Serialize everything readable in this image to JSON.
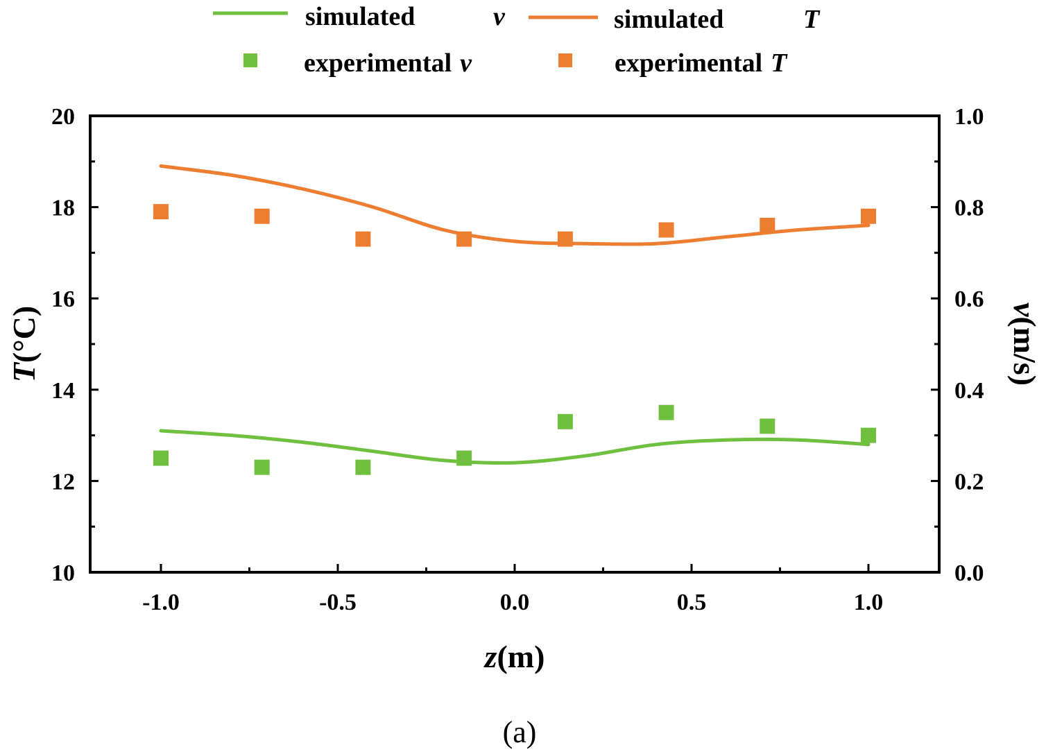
{
  "chart_data": {
    "type": "line",
    "x": [
      -1.0,
      -0.7143,
      -0.4286,
      -0.1429,
      0.1429,
      0.4286,
      0.7143,
      1.0
    ],
    "xlabel": {
      "var": "z",
      "unit": "(m)"
    },
    "ylabel_left": {
      "var": "T",
      "unit": "(°C)"
    },
    "ylabel_right": {
      "var": "v",
      "unit": "(m/s)"
    },
    "xlim": [
      -1.2,
      1.2
    ],
    "ylim_left": [
      10,
      20
    ],
    "ylim_right": [
      0.0,
      1.0
    ],
    "xticks": [
      "-1.0",
      "-0.5",
      "0.0",
      "0.5",
      "1.0"
    ],
    "xtick_values": [
      -1.0,
      -0.5,
      0.0,
      0.5,
      1.0
    ],
    "yticks_left": [
      "10",
      "12",
      "14",
      "16",
      "18",
      "20"
    ],
    "ytick_values_left": [
      10,
      12,
      14,
      16,
      18,
      20
    ],
    "yticks_right": [
      "0.0",
      "0.2",
      "0.4",
      "0.6",
      "0.8",
      "1.0"
    ],
    "ytick_values_right": [
      0.0,
      0.2,
      0.4,
      0.6,
      0.8,
      1.0
    ],
    "series": [
      {
        "name": "simulated T",
        "kind": "line",
        "axis": "left",
        "color": "#ed7d31",
        "x": [
          -1.0,
          -0.8,
          -0.6,
          -0.4,
          -0.2,
          0.0,
          0.2,
          0.4,
          0.6,
          0.8,
          1.0
        ],
        "values": [
          18.9,
          18.7,
          18.4,
          18.0,
          17.5,
          17.25,
          17.2,
          17.2,
          17.35,
          17.5,
          17.6
        ]
      },
      {
        "name": "experimental T",
        "kind": "marker",
        "axis": "left",
        "color": "#ed7d31",
        "x": [
          -1.0,
          -0.7143,
          -0.4286,
          -0.1429,
          0.1429,
          0.4286,
          0.7143,
          1.0
        ],
        "values": [
          17.9,
          17.8,
          17.3,
          17.3,
          17.3,
          17.5,
          17.6,
          17.8
        ]
      },
      {
        "name": "simulated v",
        "kind": "line",
        "axis": "right",
        "color": "#70c040",
        "x": [
          -1.0,
          -0.8,
          -0.6,
          -0.4,
          -0.2,
          0.0,
          0.2,
          0.4,
          0.6,
          0.8,
          1.0
        ],
        "values": [
          0.31,
          0.3,
          0.285,
          0.265,
          0.245,
          0.24,
          0.255,
          0.28,
          0.29,
          0.29,
          0.28
        ]
      },
      {
        "name": "experimental v",
        "kind": "marker",
        "axis": "right",
        "color": "#70c040",
        "x": [
          -1.0,
          -0.7143,
          -0.4286,
          -0.1429,
          0.1429,
          0.4286,
          0.7143,
          1.0
        ],
        "values": [
          0.25,
          0.23,
          0.23,
          0.25,
          0.33,
          0.35,
          0.32,
          0.3
        ]
      }
    ],
    "legend": {
      "placement": "top",
      "entries": [
        {
          "word": "simulated",
          "var": "v",
          "kind": "line",
          "color": "#70c040"
        },
        {
          "word": "simulated",
          "var": "T",
          "kind": "line",
          "color": "#ed7d31"
        },
        {
          "word": "experimental",
          "var": "v",
          "kind": "marker",
          "color": "#70c040"
        },
        {
          "word": "experimental",
          "var": "T",
          "kind": "marker",
          "color": "#ed7d31"
        }
      ]
    },
    "caption": "(a)"
  }
}
